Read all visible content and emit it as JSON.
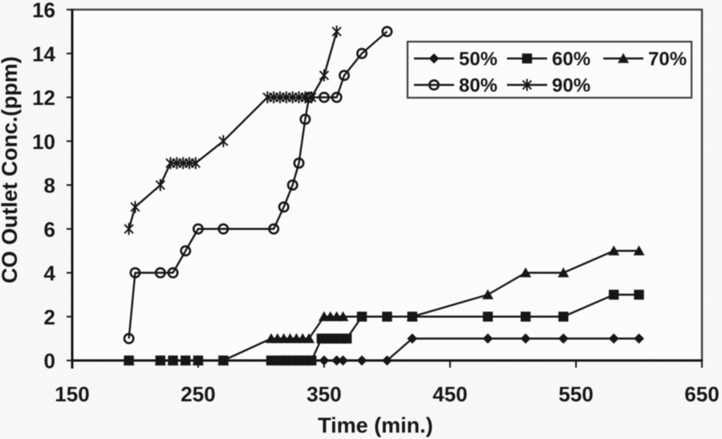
{
  "figure": {
    "background": "#fbfbfb",
    "line_color": "#141414",
    "box_color": "#3c3c3c",
    "text_color": "#141414"
  },
  "chart_data": {
    "type": "line",
    "title": "",
    "xlabel": "Time (min.)",
    "ylabel": "CO Outlet Conc.(ppm)",
    "xlim": [
      150,
      650
    ],
    "ylim": [
      0,
      16
    ],
    "x_ticks": [
      150,
      250,
      350,
      450,
      550,
      650
    ],
    "y_ticks": [
      0,
      2,
      4,
      6,
      8,
      10,
      12,
      14,
      16
    ],
    "grid": false,
    "legend_position": "top-right-inside",
    "legend_rows": [
      [
        "50%",
        "60%",
        "70%"
      ],
      [
        "80%",
        "90%"
      ]
    ],
    "series": [
      {
        "name": "50%",
        "marker": "diamond",
        "points": [
          [
            195,
            0
          ],
          [
            220,
            0
          ],
          [
            230,
            0
          ],
          [
            240,
            0
          ],
          [
            250,
            0
          ],
          [
            270,
            0
          ],
          [
            310,
            0
          ],
          [
            320,
            0
          ],
          [
            330,
            0
          ],
          [
            340,
            0
          ],
          [
            350,
            0
          ],
          [
            360,
            0
          ],
          [
            365,
            0
          ],
          [
            380,
            0
          ],
          [
            400,
            0
          ],
          [
            420,
            1
          ],
          [
            480,
            1
          ],
          [
            510,
            1
          ],
          [
            540,
            1
          ],
          [
            580,
            1
          ],
          [
            600,
            1
          ]
        ]
      },
      {
        "name": "60%",
        "marker": "square",
        "points": [
          [
            195,
            0
          ],
          [
            220,
            0
          ],
          [
            230,
            0
          ],
          [
            240,
            0
          ],
          [
            250,
            0
          ],
          [
            270,
            0
          ],
          [
            308,
            0
          ],
          [
            315,
            0
          ],
          [
            320,
            0
          ],
          [
            325,
            0
          ],
          [
            330,
            0
          ],
          [
            335,
            0
          ],
          [
            340,
            0
          ],
          [
            348,
            1
          ],
          [
            353,
            1
          ],
          [
            358,
            1
          ],
          [
            363,
            1
          ],
          [
            368,
            1
          ],
          [
            380,
            2
          ],
          [
            400,
            2
          ],
          [
            420,
            2
          ],
          [
            480,
            2
          ],
          [
            510,
            2
          ],
          [
            540,
            2
          ],
          [
            580,
            3
          ],
          [
            600,
            3
          ]
        ]
      },
      {
        "name": "70%",
        "marker": "triangle",
        "points": [
          [
            195,
            0
          ],
          [
            220,
            0
          ],
          [
            230,
            0
          ],
          [
            240,
            0
          ],
          [
            250,
            0
          ],
          [
            270,
            0
          ],
          [
            308,
            1
          ],
          [
            313,
            1
          ],
          [
            318,
            1
          ],
          [
            323,
            1
          ],
          [
            328,
            1
          ],
          [
            333,
            1
          ],
          [
            338,
            1
          ],
          [
            350,
            2
          ],
          [
            355,
            2
          ],
          [
            360,
            2
          ],
          [
            365,
            2
          ],
          [
            420,
            2
          ],
          [
            480,
            3
          ],
          [
            510,
            4
          ],
          [
            540,
            4
          ],
          [
            580,
            5
          ],
          [
            600,
            5
          ]
        ]
      },
      {
        "name": "80%",
        "marker": "circle-open",
        "points": [
          [
            195,
            1
          ],
          [
            200,
            4
          ],
          [
            220,
            4
          ],
          [
            230,
            4
          ],
          [
            240,
            5
          ],
          [
            250,
            6
          ],
          [
            270,
            6
          ],
          [
            310,
            6
          ],
          [
            318,
            7
          ],
          [
            325,
            8
          ],
          [
            330,
            9
          ],
          [
            335,
            11
          ],
          [
            338,
            12
          ],
          [
            350,
            12
          ],
          [
            360,
            12
          ],
          [
            366,
            13
          ],
          [
            380,
            14
          ],
          [
            400,
            15
          ]
        ]
      },
      {
        "name": "90%",
        "marker": "asterisk",
        "points": [
          [
            195,
            6
          ],
          [
            200,
            7
          ],
          [
            220,
            8
          ],
          [
            228,
            9
          ],
          [
            233,
            9
          ],
          [
            238,
            9
          ],
          [
            243,
            9
          ],
          [
            248,
            9
          ],
          [
            270,
            10
          ],
          [
            305,
            12
          ],
          [
            310,
            12
          ],
          [
            315,
            12
          ],
          [
            320,
            12
          ],
          [
            325,
            12
          ],
          [
            330,
            12
          ],
          [
            335,
            12
          ],
          [
            340,
            12
          ],
          [
            350,
            13
          ],
          [
            360,
            15
          ]
        ]
      }
    ]
  }
}
